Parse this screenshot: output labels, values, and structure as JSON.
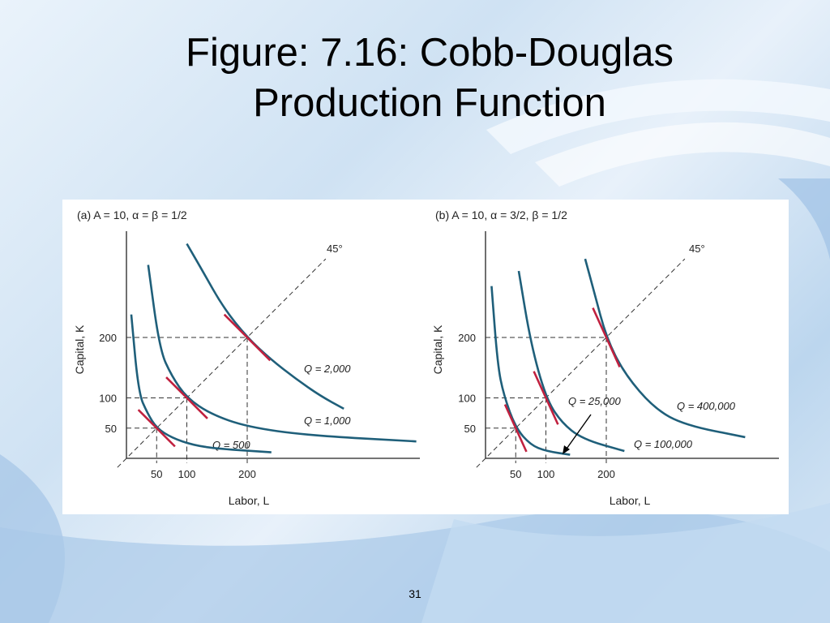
{
  "slide": {
    "title_line1": "Figure: 7.16: Cobb-Douglas",
    "title_line2": "Production Function",
    "page_number": "31"
  },
  "colors": {
    "curve": "#1f5f7a",
    "tangent": "#c0213f",
    "axis": "#222222",
    "guide": "#333333"
  },
  "chart_data": [
    {
      "type": "line",
      "title": "(a) A = 10, α = β = 1/2",
      "xlabel": "Labor, L",
      "ylabel": "Capital, K",
      "x_ticks": [
        "50",
        "100",
        "200"
      ],
      "y_ticks": [
        "50",
        "100",
        "200"
      ],
      "diagonal_label": "45°",
      "series": [
        {
          "name": "Q = 500",
          "points": [
            [
              8,
              238
            ],
            [
              20,
              108
            ],
            [
              35,
              74
            ],
            [
              50,
              50
            ],
            [
              75,
              34
            ],
            [
              110,
              22
            ],
            [
              150,
              16
            ],
            [
              240,
              10
            ]
          ]
        },
        {
          "name": "Q = 1,000",
          "points": [
            [
              36,
              320
            ],
            [
              55,
              180
            ],
            [
              75,
              136
            ],
            [
              100,
              100
            ],
            [
              140,
              73
            ],
            [
              200,
              52
            ],
            [
              300,
              38
            ],
            [
              480,
              28
            ]
          ]
        },
        {
          "name": "Q = 2,000",
          "points": [
            [
              100,
              355
            ],
            [
              125,
              312
            ],
            [
              160,
              250
            ],
            [
              200,
              200
            ],
            [
              240,
              163
            ],
            [
              280,
              132
            ],
            [
              320,
              104
            ],
            [
              360,
              82
            ]
          ]
        }
      ],
      "tangent_points": [
        [
          50,
          50
        ],
        [
          100,
          100
        ],
        [
          200,
          200
        ]
      ]
    },
    {
      "type": "line",
      "title": "(b) A = 10, α = 3/2,  β = 1/2",
      "xlabel": "Labor, L",
      "ylabel": "Capital, K",
      "x_ticks": [
        "50",
        "100",
        "200"
      ],
      "y_ticks": [
        "50",
        "100",
        "200"
      ],
      "diagonal_label": "45°",
      "series": [
        {
          "name": "Q = 25,000",
          "points": [
            [
              10,
              285
            ],
            [
              20,
              155
            ],
            [
              30,
              105
            ],
            [
              50,
              50
            ],
            [
              75,
              22
            ],
            [
              100,
              12
            ],
            [
              140,
              6
            ]
          ]
        },
        {
          "name": "Q = 100,000",
          "points": [
            [
              55,
              310
            ],
            [
              75,
              190
            ],
            [
              100,
              100
            ],
            [
              125,
              60
            ],
            [
              160,
              32
            ],
            [
              230,
              12
            ]
          ]
        },
        {
          "name": "Q = 400,000",
          "points": [
            [
              165,
              330
            ],
            [
              180,
              275
            ],
            [
              200,
              200
            ],
            [
              230,
              140
            ],
            [
              280,
              82
            ],
            [
              330,
              55
            ],
            [
              430,
              35
            ]
          ]
        }
      ],
      "tangent_points": [
        [
          50,
          50
        ],
        [
          100,
          100
        ],
        [
          200,
          200
        ]
      ]
    }
  ]
}
